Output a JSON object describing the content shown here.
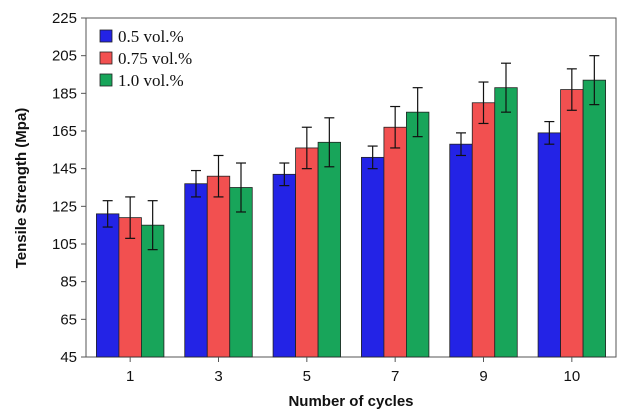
{
  "chart_data": {
    "type": "bar",
    "title": "",
    "xlabel": "Number of cycles",
    "ylabel": "Tensile Strength (Mpa)",
    "categories": [
      "1",
      "3",
      "5",
      "7",
      "9",
      "10"
    ],
    "ylim": [
      45,
      225
    ],
    "yticks": [
      45,
      65,
      85,
      105,
      125,
      145,
      165,
      185,
      205,
      225
    ],
    "grid": false,
    "legend_position": "top-left",
    "series": [
      {
        "name": "0.5 vol.%",
        "color": "#2323e6",
        "values": [
          121,
          137,
          142,
          151,
          158,
          164
        ],
        "errors": [
          7,
          7,
          6,
          6,
          6,
          6
        ]
      },
      {
        "name": "0.75 vol.%",
        "color": "#f25050",
        "values": [
          119,
          141,
          156,
          167,
          180,
          187
        ],
        "errors": [
          11,
          11,
          11,
          11,
          11,
          11
        ]
      },
      {
        "name": "1.0 vol.%",
        "color": "#18a55a",
        "values": [
          115,
          135,
          159,
          175,
          188,
          192
        ],
        "errors": [
          13,
          13,
          13,
          13,
          13,
          13
        ]
      }
    ]
  }
}
